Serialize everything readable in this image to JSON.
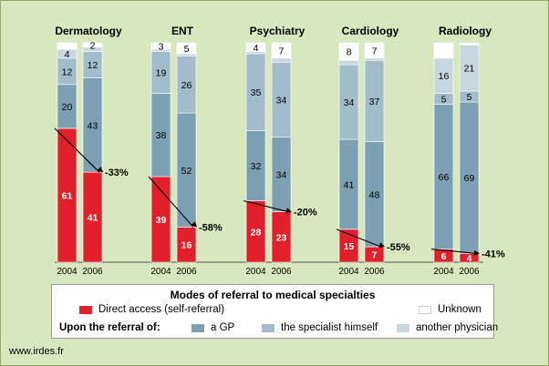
{
  "chart_data": {
    "type": "bar",
    "stacked": true,
    "ylim": [
      0,
      100
    ],
    "grid": false,
    "legend_placement": "bottom",
    "years": [
      "2004",
      "2006"
    ],
    "groups": [
      {
        "name": "Dermatology",
        "bars": [
          {
            "year": "2004",
            "values": {
              "direct": 61,
              "gp": 20,
              "specialist": 12,
              "other": 4,
              "unknown": 3
            },
            "labels": {
              "direct": "61",
              "gp": "20",
              "specialist": "12",
              "other": "4",
              "unknown": ""
            }
          },
          {
            "year": "2006",
            "values": {
              "direct": 41,
              "gp": 43,
              "specialist": 12,
              "other": 2,
              "unknown": 2
            },
            "labels": {
              "direct": "41",
              "gp": "43",
              "specialist": "12",
              "other": "",
              "unknown": "2"
            }
          }
        ],
        "change": "-33%"
      },
      {
        "name": "ENT",
        "bars": [
          {
            "year": "2004",
            "values": {
              "direct": 39,
              "gp": 38,
              "specialist": 19,
              "other": 1,
              "unknown": 3
            },
            "labels": {
              "direct": "39",
              "gp": "38",
              "specialist": "19",
              "other": "",
              "unknown": "3"
            }
          },
          {
            "year": "2006",
            "values": {
              "direct": 16,
              "gp": 52,
              "specialist": 26,
              "other": 1,
              "unknown": 5
            },
            "labels": {
              "direct": "16",
              "gp": "52",
              "specialist": "26",
              "other": "",
              "unknown": "5"
            }
          }
        ],
        "change": "-58%"
      },
      {
        "name": "Psychiatry",
        "bars": [
          {
            "year": "2004",
            "values": {
              "direct": 28,
              "gp": 32,
              "specialist": 35,
              "other": 1,
              "unknown": 4
            },
            "labels": {
              "direct": "28",
              "gp": "32",
              "specialist": "35",
              "other": "",
              "unknown": "4"
            }
          },
          {
            "year": "2006",
            "values": {
              "direct": 23,
              "gp": 34,
              "specialist": 34,
              "other": 2,
              "unknown": 7
            },
            "labels": {
              "direct": "23",
              "gp": "34",
              "specialist": "34",
              "other": "",
              "unknown": "7"
            }
          }
        ],
        "change": "-20%"
      },
      {
        "name": "Cardiology",
        "bars": [
          {
            "year": "2004",
            "values": {
              "direct": 15,
              "gp": 41,
              "specialist": 34,
              "other": 2,
              "unknown": 8
            },
            "labels": {
              "direct": "15",
              "gp": "41",
              "specialist": "34",
              "other": "",
              "unknown": "8"
            }
          },
          {
            "year": "2006",
            "values": {
              "direct": 7,
              "gp": 48,
              "specialist": 37,
              "other": 1,
              "unknown": 7
            },
            "labels": {
              "direct": "7",
              "gp": "48",
              "specialist": "37",
              "other": "",
              "unknown": "7"
            }
          }
        ],
        "change": "-55%"
      },
      {
        "name": "Radiology",
        "bars": [
          {
            "year": "2004",
            "values": {
              "direct": 6,
              "gp": 66,
              "specialist": 5,
              "other": 16,
              "unknown": 7
            },
            "labels": {
              "direct": "6",
              "gp": "66",
              "specialist": "5",
              "other": "16",
              "unknown": ""
            }
          },
          {
            "year": "2006",
            "values": {
              "direct": 4,
              "gp": 69,
              "specialist": 5,
              "other": 21,
              "unknown": 1
            },
            "labels": {
              "direct": "4",
              "gp": "69",
              "specialist": "5",
              "other": "21",
              "unknown": ""
            }
          }
        ],
        "change": "-41%"
      }
    ],
    "series_order": [
      "direct",
      "gp",
      "specialist",
      "other",
      "unknown"
    ],
    "colors": {
      "direct": "#e2202c",
      "gp": "#7d9fb3",
      "specialist": "#a3bccb",
      "other": "#c6d7e0",
      "unknown": "#ffffff",
      "arrow": "#000000"
    },
    "label_colors": {
      "direct": "#ffffff",
      "gp": "#000000",
      "specialist": "#000000",
      "other": "#000000",
      "unknown": "#000000"
    }
  },
  "legend": {
    "title": "Modes of  referral to medical specialties",
    "direct": "Direct access (self-referral)",
    "unknown": "Unknown",
    "prefix": "Upon the referral of:",
    "gp": "a GP",
    "specialist": "the specialist himself",
    "other": "another physician"
  },
  "source": "www.irdes.fr"
}
